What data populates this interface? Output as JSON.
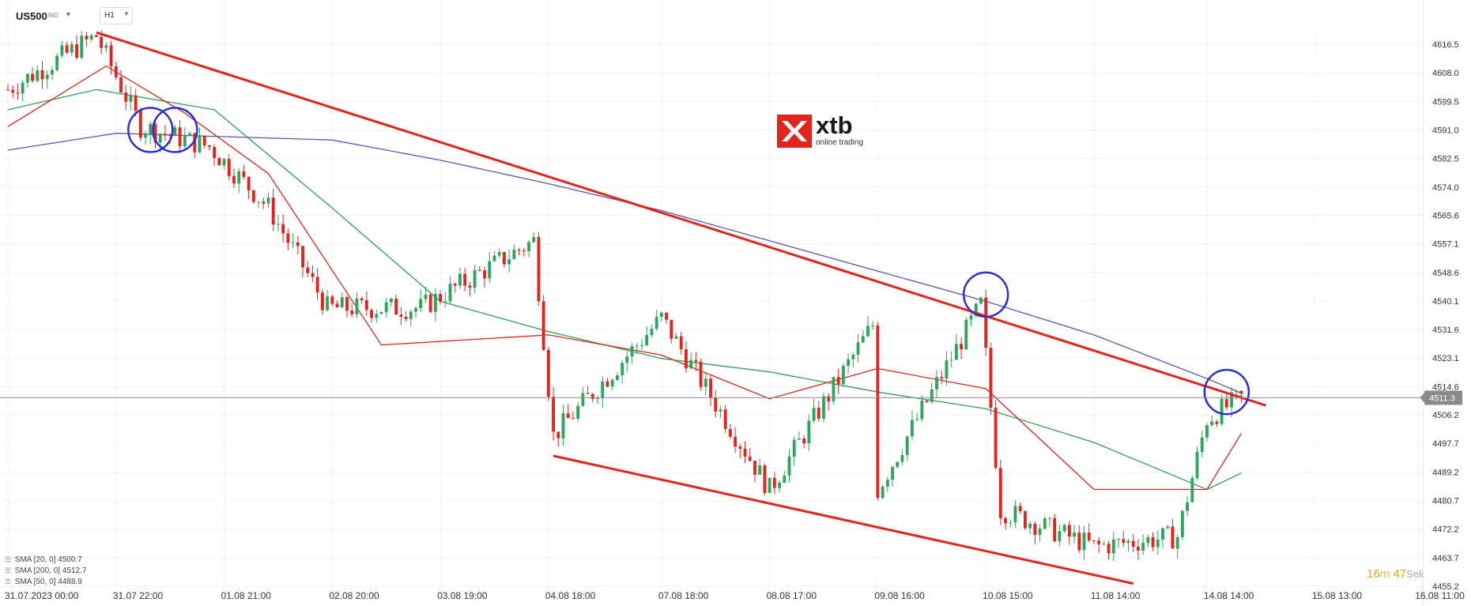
{
  "header": {
    "symbol": "US500",
    "symbol_type": "IND",
    "timeframe": "H1"
  },
  "logo": {
    "brand": "xtb",
    "tagline": "online trading",
    "color": "#e3241d"
  },
  "timer": {
    "minutes": "16",
    "minutes_unit": "m",
    "seconds": "47",
    "seconds_unit": "Sek"
  },
  "indicators": [
    {
      "label": "SMA [20, 0]",
      "value": "4500.7",
      "color": "#e3241d"
    },
    {
      "label": "SMA [200, 0]",
      "value": "4512.7",
      "color": "#5558a8"
    },
    {
      "label": "SMA [50, 0]",
      "value": "4488.9",
      "color": "#2e9e63"
    }
  ],
  "chart_data": {
    "type": "candlestick",
    "instrument": "US500",
    "timeframe": "H1",
    "current_price": 4511.3,
    "ylim": [
      4455.2,
      4622
    ],
    "y_ticks": [
      "4616.5",
      "4608.0",
      "4599.5",
      "4591.0",
      "4582.5",
      "4574.0",
      "4565.6",
      "4557.1",
      "4548.6",
      "4540.1",
      "4531.6",
      "4523.1",
      "4514.6",
      "4506.2",
      "4497.7",
      "4489.2",
      "4480.7",
      "4472.2",
      "4463.7",
      "4455.2"
    ],
    "x_ticks": [
      "31.07.2023  00:00",
      "31.07  22:00",
      "01.08  21:00",
      "02.08  20:00",
      "03.08  19:00",
      "04.08  18:00",
      "07.08  18:00",
      "08.08  17:00",
      "09.08  16:00",
      "10.08  15:00",
      "11.08  14:00",
      "14.08  14:00",
      "15.08  13:00",
      "16.08  11:00"
    ],
    "up_color": "#2ea55d",
    "down_color": "#e3241d",
    "anchors": [
      {
        "x": "31.07.2023  00:00",
        "price": 4603
      },
      {
        "x": "31.07  18:00",
        "price": 4619
      },
      {
        "x": "01.08  04:00",
        "price": 4592
      },
      {
        "x": "01.08  18:00",
        "price": 4586
      },
      {
        "x": "02.08  07:00",
        "price": 4568
      },
      {
        "x": "02.08  19:00",
        "price": 4538
      },
      {
        "x": "03.08  15:00",
        "price": 4538
      },
      {
        "x": "04.08  15:00",
        "price": 4558
      },
      {
        "x": "04.08  19:00",
        "price": 4500
      },
      {
        "x": "07.08  18:00",
        "price": 4535
      },
      {
        "x": "08.08  17:00",
        "price": 4484
      },
      {
        "x": "09.08  15:00",
        "price": 4533
      },
      {
        "x": "09.08  16:00",
        "price": 4484
      },
      {
        "x": "10.08  14:00",
        "price": 4539
      },
      {
        "x": "10.08  18:00",
        "price": 4478
      },
      {
        "x": "11.08  14:00",
        "price": 4467
      },
      {
        "x": "14.08  08:00",
        "price": 4470
      },
      {
        "x": "14.08  14:00",
        "price": 4505
      },
      {
        "x": "14.08  21:00",
        "price": 4511.3
      }
    ],
    "sma_20": [
      {
        "x": "31.07.2023  00:00",
        "price": 4592
      },
      {
        "x": "31.07  20:00",
        "price": 4610
      },
      {
        "x": "01.08  13:00",
        "price": 4596
      },
      {
        "x": "02.08  07:00",
        "price": 4578
      },
      {
        "x": "03.08  07:00",
        "price": 4527
      },
      {
        "x": "04.08  18:00",
        "price": 4530
      },
      {
        "x": "07.08  18:00",
        "price": 4524
      },
      {
        "x": "08.08  17:00",
        "price": 4511
      },
      {
        "x": "09.08  16:00",
        "price": 4520
      },
      {
        "x": "10.08  15:00",
        "price": 4514
      },
      {
        "x": "11.08  14:00",
        "price": 4484
      },
      {
        "x": "14.08  14:00",
        "price": 4484
      },
      {
        "x": "14.08  21:00",
        "price": 4500.7
      }
    ],
    "sma_50": [
      {
        "x": "31.07.2023  00:00",
        "price": 4597
      },
      {
        "x": "31.07  18:00",
        "price": 4603
      },
      {
        "x": "01.08  19:00",
        "price": 4597
      },
      {
        "x": "02.08  19:00",
        "price": 4569
      },
      {
        "x": "03.08  19:00",
        "price": 4540
      },
      {
        "x": "04.08  18:00",
        "price": 4531
      },
      {
        "x": "07.08  18:00",
        "price": 4523
      },
      {
        "x": "08.08  17:00",
        "price": 4519
      },
      {
        "x": "09.08  16:00",
        "price": 4513
      },
      {
        "x": "10.08  15:00",
        "price": 4508
      },
      {
        "x": "11.08  14:00",
        "price": 4498
      },
      {
        "x": "14.08  14:00",
        "price": 4484
      },
      {
        "x": "14.08  21:00",
        "price": 4488.9
      }
    ],
    "sma_200": [
      {
        "x": "31.07.2023  00:00",
        "price": 4585
      },
      {
        "x": "31.07  22:00",
        "price": 4590
      },
      {
        "x": "01.08  21:00",
        "price": 4589
      },
      {
        "x": "02.08  20:00",
        "price": 4588
      },
      {
        "x": "03.08  19:00",
        "price": 4582
      },
      {
        "x": "04.08  18:00",
        "price": 4575
      },
      {
        "x": "07.08  18:00",
        "price": 4567
      },
      {
        "x": "08.08  17:00",
        "price": 4558
      },
      {
        "x": "09.08  16:00",
        "price": 4549
      },
      {
        "x": "10.08  15:00",
        "price": 4540
      },
      {
        "x": "11.08  14:00",
        "price": 4530
      },
      {
        "x": "14.08  14:00",
        "price": 4517
      },
      {
        "x": "14.08  21:00",
        "price": 4512.7
      }
    ],
    "trendlines": [
      {
        "name": "resistance",
        "from": {
          "x": "31.07  18:00",
          "price": 4620
        },
        "to": {
          "x": "15.08  03:00",
          "price": 4509
        },
        "color": "#e3241d"
      },
      {
        "name": "support",
        "from": {
          "x": "04.08  19:00",
          "price": 4494
        },
        "to": {
          "x": "11.08  22:00",
          "price": 4456
        },
        "color": "#e3241d"
      }
    ],
    "highlights": [
      {
        "x": "01.08  06:00",
        "price": 4591,
        "color": "#2b2fd1"
      },
      {
        "x": "01.08  11:00",
        "price": 4591,
        "color": "#2b2fd1"
      },
      {
        "x": "10.08  15:00",
        "price": 4542,
        "color": "#2b2fd1"
      },
      {
        "x": "14.08  18:00",
        "price": 4513,
        "color": "#2b2fd1"
      }
    ]
  }
}
